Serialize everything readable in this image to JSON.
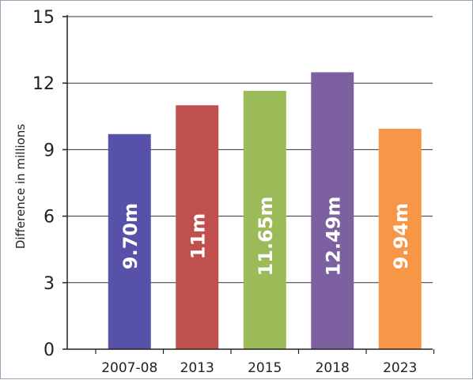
{
  "chart_data": {
    "type": "bar",
    "title": "",
    "xlabel": "",
    "ylabel": "Difference in millions",
    "categories": [
      "2007-08",
      "2013",
      "2015",
      "2018",
      "2023"
    ],
    "values": [
      9.7,
      11,
      11.65,
      12.49,
      9.94
    ],
    "data_labels": [
      "9.70m",
      "11m",
      "11.65m",
      "12.49m",
      "9.94m"
    ],
    "colors": [
      "#5752a8",
      "#c0504d",
      "#9bbb59",
      "#7d60a0",
      "#f79646"
    ],
    "ylim": [
      0,
      15
    ],
    "yticks": [
      0,
      3,
      6,
      9,
      12,
      15
    ],
    "grid": true,
    "legend": "none"
  }
}
